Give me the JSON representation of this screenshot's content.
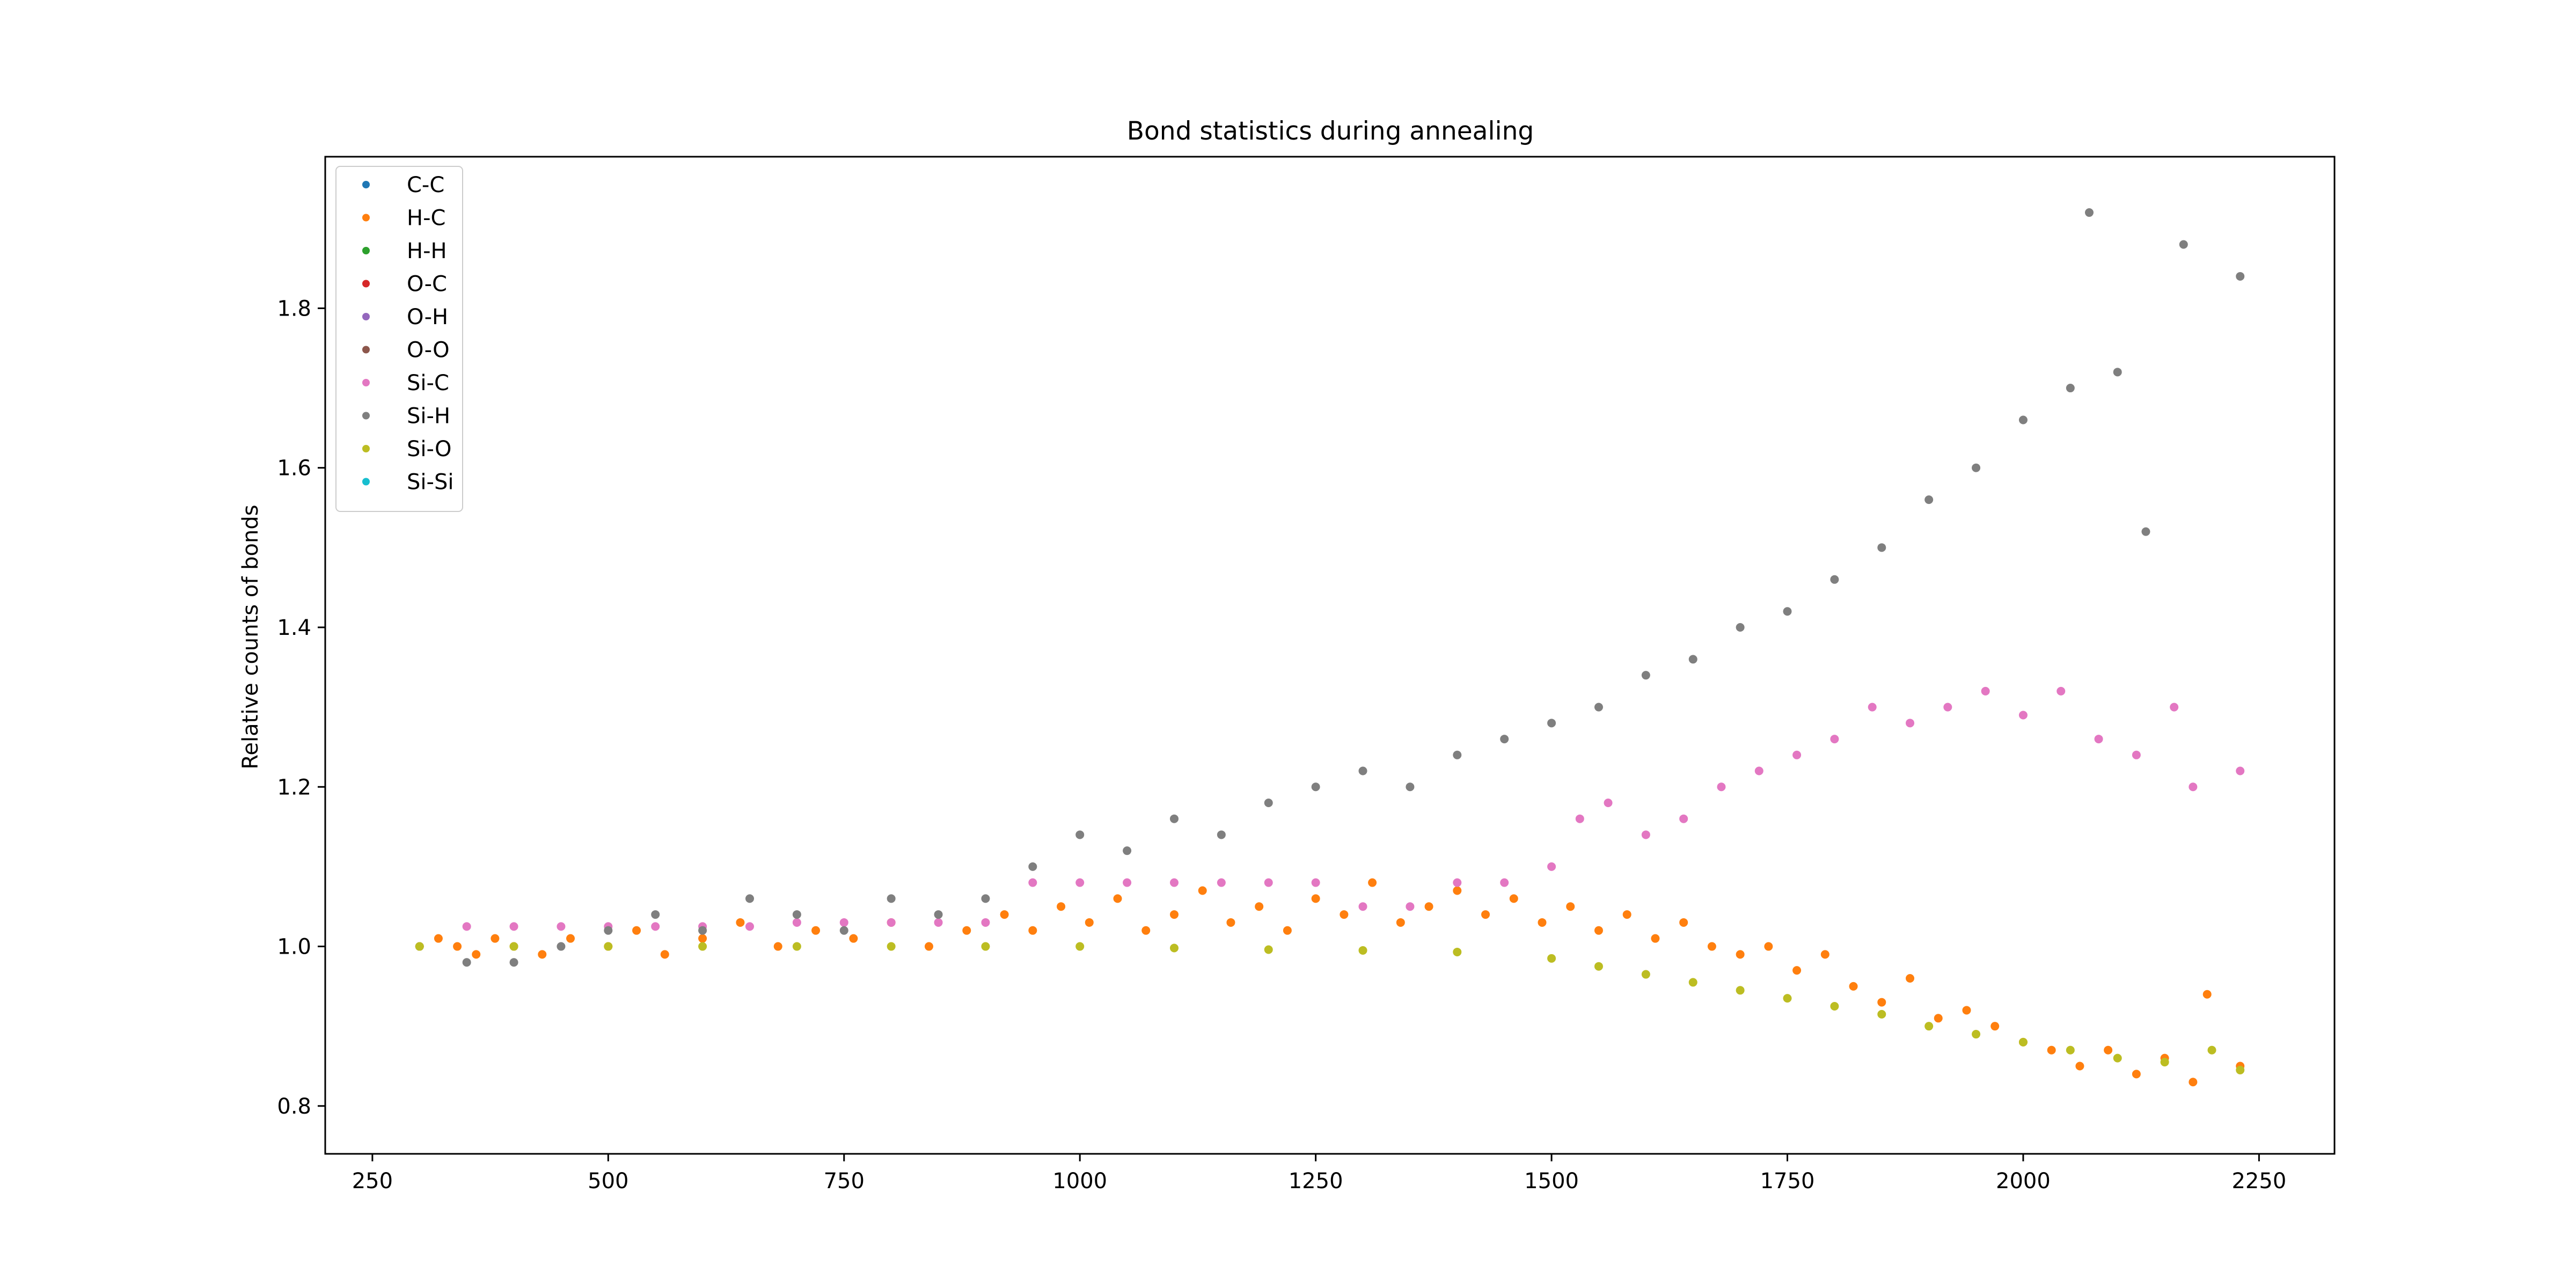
{
  "chart_data": {
    "type": "scatter",
    "title": "Bond statistics during annealing",
    "xlabel": "",
    "ylabel": "Relative counts of bonds",
    "xlim": [
      200,
      2330
    ],
    "ylim": [
      0.74,
      1.99
    ],
    "x_ticks": [
      250,
      500,
      750,
      1000,
      1250,
      1500,
      1750,
      2000,
      2250
    ],
    "y_ticks": [
      0.8,
      1.0,
      1.2,
      1.4,
      1.6,
      1.8
    ],
    "x_tick_labels": [
      "250",
      "500",
      "750",
      "1000",
      "1250",
      "1500",
      "1750",
      "2000",
      "2250"
    ],
    "y_tick_labels": [
      "0.8",
      "1.0",
      "1.2",
      "1.4",
      "1.6",
      "1.8"
    ],
    "grid": false,
    "legend_position": "top-left",
    "series": [
      {
        "name": "C-C",
        "color": "#1f77b4",
        "points": []
      },
      {
        "name": "H-C",
        "color": "#ff7f0e",
        "points": [
          [
            300,
            1.0
          ],
          [
            320,
            1.01
          ],
          [
            340,
            1.0
          ],
          [
            360,
            0.99
          ],
          [
            380,
            1.01
          ],
          [
            400,
            1.0
          ],
          [
            430,
            0.99
          ],
          [
            460,
            1.01
          ],
          [
            500,
            1.0
          ],
          [
            530,
            1.02
          ],
          [
            560,
            0.99
          ],
          [
            600,
            1.01
          ],
          [
            640,
            1.03
          ],
          [
            680,
            1.0
          ],
          [
            720,
            1.02
          ],
          [
            760,
            1.01
          ],
          [
            800,
            1.03
          ],
          [
            840,
            1.0
          ],
          [
            880,
            1.02
          ],
          [
            920,
            1.04
          ],
          [
            950,
            1.02
          ],
          [
            980,
            1.05
          ],
          [
            1010,
            1.03
          ],
          [
            1040,
            1.06
          ],
          [
            1070,
            1.02
          ],
          [
            1100,
            1.04
          ],
          [
            1130,
            1.07
          ],
          [
            1160,
            1.03
          ],
          [
            1190,
            1.05
          ],
          [
            1220,
            1.02
          ],
          [
            1250,
            1.06
          ],
          [
            1280,
            1.04
          ],
          [
            1310,
            1.08
          ],
          [
            1340,
            1.03
          ],
          [
            1370,
            1.05
          ],
          [
            1400,
            1.07
          ],
          [
            1430,
            1.04
          ],
          [
            1460,
            1.06
          ],
          [
            1490,
            1.03
          ],
          [
            1520,
            1.05
          ],
          [
            1550,
            1.02
          ],
          [
            1580,
            1.04
          ],
          [
            1610,
            1.01
          ],
          [
            1640,
            1.03
          ],
          [
            1670,
            1.0
          ],
          [
            1700,
            0.99
          ],
          [
            1730,
            1.0
          ],
          [
            1760,
            0.97
          ],
          [
            1790,
            0.99
          ],
          [
            1820,
            0.95
          ],
          [
            1850,
            0.93
          ],
          [
            1880,
            0.96
          ],
          [
            1910,
            0.91
          ],
          [
            1940,
            0.92
          ],
          [
            1970,
            0.9
          ],
          [
            2000,
            0.88
          ],
          [
            2030,
            0.87
          ],
          [
            2060,
            0.85
          ],
          [
            2090,
            0.87
          ],
          [
            2120,
            0.84
          ],
          [
            2150,
            0.86
          ],
          [
            2180,
            0.83
          ],
          [
            2195,
            0.94
          ],
          [
            2230,
            0.85
          ]
        ]
      },
      {
        "name": "H-H",
        "color": "#2ca02c",
        "points": []
      },
      {
        "name": "O-C",
        "color": "#d62728",
        "points": []
      },
      {
        "name": "O-H",
        "color": "#9467bd",
        "points": []
      },
      {
        "name": "O-O",
        "color": "#8c564b",
        "points": []
      },
      {
        "name": "Si-C",
        "color": "#e377c2",
        "points": [
          [
            350,
            1.025
          ],
          [
            400,
            1.025
          ],
          [
            450,
            1.025
          ],
          [
            500,
            1.025
          ],
          [
            550,
            1.025
          ],
          [
            600,
            1.025
          ],
          [
            650,
            1.025
          ],
          [
            700,
            1.03
          ],
          [
            750,
            1.03
          ],
          [
            800,
            1.03
          ],
          [
            850,
            1.03
          ],
          [
            900,
            1.03
          ],
          [
            950,
            1.08
          ],
          [
            1000,
            1.08
          ],
          [
            1050,
            1.08
          ],
          [
            1100,
            1.08
          ],
          [
            1150,
            1.08
          ],
          [
            1200,
            1.08
          ],
          [
            1250,
            1.08
          ],
          [
            1300,
            1.05
          ],
          [
            1350,
            1.05
          ],
          [
            1400,
            1.08
          ],
          [
            1450,
            1.08
          ],
          [
            1500,
            1.1
          ],
          [
            1530,
            1.16
          ],
          [
            1560,
            1.18
          ],
          [
            1600,
            1.14
          ],
          [
            1640,
            1.16
          ],
          [
            1680,
            1.2
          ],
          [
            1720,
            1.22
          ],
          [
            1760,
            1.24
          ],
          [
            1800,
            1.26
          ],
          [
            1840,
            1.3
          ],
          [
            1880,
            1.28
          ],
          [
            1920,
            1.3
          ],
          [
            1960,
            1.32
          ],
          [
            2000,
            1.29
          ],
          [
            2040,
            1.32
          ],
          [
            2080,
            1.26
          ],
          [
            2120,
            1.24
          ],
          [
            2160,
            1.3
          ],
          [
            2180,
            1.2
          ],
          [
            2230,
            1.22
          ]
        ]
      },
      {
        "name": "Si-H",
        "color": "#7f7f7f",
        "points": [
          [
            300,
            1.0
          ],
          [
            350,
            0.98
          ],
          [
            400,
            0.98
          ],
          [
            450,
            1.0
          ],
          [
            500,
            1.02
          ],
          [
            550,
            1.04
          ],
          [
            600,
            1.02
          ],
          [
            650,
            1.06
          ],
          [
            700,
            1.04
          ],
          [
            750,
            1.02
          ],
          [
            800,
            1.06
          ],
          [
            850,
            1.04
          ],
          [
            900,
            1.06
          ],
          [
            950,
            1.1
          ],
          [
            1000,
            1.14
          ],
          [
            1050,
            1.12
          ],
          [
            1100,
            1.16
          ],
          [
            1150,
            1.14
          ],
          [
            1200,
            1.18
          ],
          [
            1250,
            1.2
          ],
          [
            1300,
            1.22
          ],
          [
            1350,
            1.2
          ],
          [
            1400,
            1.24
          ],
          [
            1450,
            1.26
          ],
          [
            1500,
            1.28
          ],
          [
            1550,
            1.3
          ],
          [
            1600,
            1.34
          ],
          [
            1650,
            1.36
          ],
          [
            1700,
            1.4
          ],
          [
            1750,
            1.42
          ],
          [
            1800,
            1.46
          ],
          [
            1850,
            1.5
          ],
          [
            1900,
            1.56
          ],
          [
            1950,
            1.6
          ],
          [
            2000,
            1.66
          ],
          [
            2050,
            1.7
          ],
          [
            2070,
            1.92
          ],
          [
            2100,
            1.72
          ],
          [
            2130,
            1.52
          ],
          [
            2170,
            1.88
          ],
          [
            2230,
            1.84
          ]
        ]
      },
      {
        "name": "Si-O",
        "color": "#bcbd22",
        "points": [
          [
            300,
            1.0
          ],
          [
            400,
            1.0
          ],
          [
            500,
            1.0
          ],
          [
            600,
            1.0
          ],
          [
            700,
            1.0
          ],
          [
            800,
            1.0
          ],
          [
            900,
            1.0
          ],
          [
            1000,
            1.0
          ],
          [
            1100,
            0.998
          ],
          [
            1200,
            0.996
          ],
          [
            1300,
            0.995
          ],
          [
            1400,
            0.993
          ],
          [
            1500,
            0.985
          ],
          [
            1550,
            0.975
          ],
          [
            1600,
            0.965
          ],
          [
            1650,
            0.955
          ],
          [
            1700,
            0.945
          ],
          [
            1750,
            0.935
          ],
          [
            1800,
            0.925
          ],
          [
            1850,
            0.915
          ],
          [
            1900,
            0.9
          ],
          [
            1950,
            0.89
          ],
          [
            2000,
            0.88
          ],
          [
            2050,
            0.87
          ],
          [
            2100,
            0.86
          ],
          [
            2150,
            0.855
          ],
          [
            2200,
            0.87
          ],
          [
            2230,
            0.845
          ]
        ]
      },
      {
        "name": "Si-Si",
        "color": "#17becf",
        "points": []
      }
    ]
  }
}
